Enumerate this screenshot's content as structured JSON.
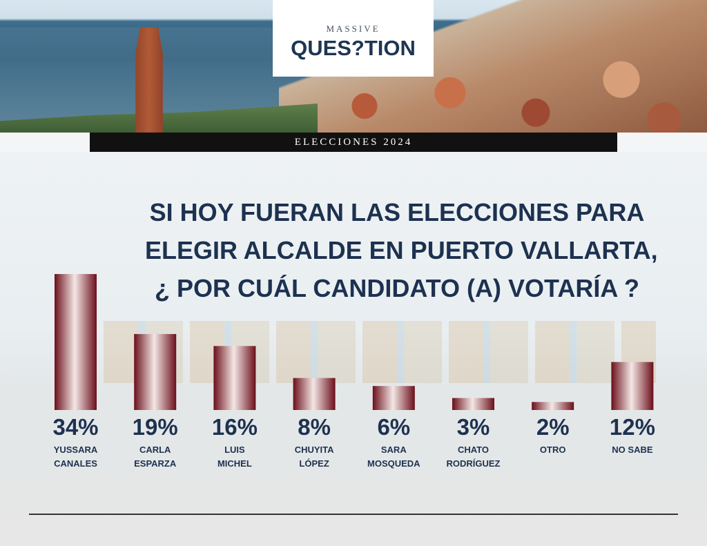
{
  "header": {
    "logo_top": "MASSIVE",
    "logo_main": "QUES?TION",
    "banner": "ELECCIONES 2024"
  },
  "question": {
    "line1": "SI HOY FUERAN LAS ELECCIONES PARA",
    "line2": "ELEGIR ALCALDE EN PUERTO VALLARTA,",
    "line3": "¿ POR CUÁL CANDIDATO (A) VOTARÍA ?"
  },
  "colors": {
    "bar_dark": "#6b0f1a",
    "bar_light": "#f4e7e6",
    "label": "#1d3150"
  },
  "chart_data": {
    "type": "bar",
    "title": "SI HOY FUERAN LAS ELECCIONES PARA ELEGIR ALCALDE EN PUERTO VALLARTA, ¿ POR CUÁL CANDIDATO (A) VOTARÍA ?",
    "unit": "%",
    "categories": [
      [
        "YUSSARA",
        "CANALES"
      ],
      [
        "CARLA",
        "ESPARZA"
      ],
      [
        "LUIS",
        "MICHEL"
      ],
      [
        "CHUYITA",
        "LÓPEZ"
      ],
      [
        "SARA",
        "MOSQUEDA"
      ],
      [
        "CHATO",
        "RODRÍGUEZ"
      ],
      [
        "OTRO"
      ],
      [
        "NO SABE"
      ]
    ],
    "values": [
      34,
      19,
      16,
      8,
      6,
      3,
      2,
      12
    ],
    "value_labels": [
      "34%",
      "19%",
      "16%",
      "8%",
      "6%",
      "3%",
      "2%",
      "12%"
    ],
    "ylim": [
      0,
      34
    ],
    "grid": false,
    "legend": "none"
  }
}
